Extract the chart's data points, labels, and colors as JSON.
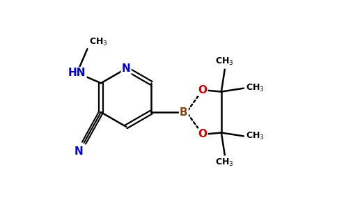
{
  "bg_color": "#ffffff",
  "bond_color": "#000000",
  "N_color": "#0000cc",
  "O_color": "#cc0000",
  "B_color": "#8B4513",
  "figsize": [
    4.84,
    3.0
  ],
  "dpi": 100,
  "xlim": [
    0,
    9.68
  ],
  "ylim": [
    0,
    6.0
  ]
}
